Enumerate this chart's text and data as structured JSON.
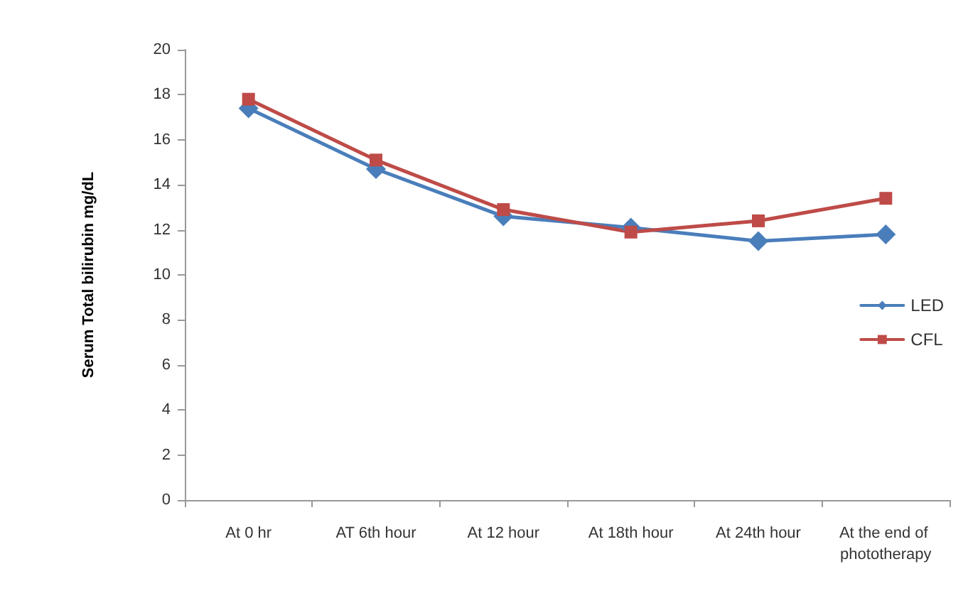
{
  "chart_data": {
    "type": "line",
    "ylabel": "Serum Total bilirubin mg/dL",
    "categories": [
      "At 0 hr",
      "AT 6th hour",
      "At 12 hour",
      "At 18th hour",
      "At 24th hour",
      "At the end of phototherapy"
    ],
    "series": [
      {
        "name": "LED",
        "color": "#4a7ebb",
        "marker": "diamond",
        "values": [
          17.4,
          14.7,
          12.6,
          12.1,
          11.5,
          11.8
        ]
      },
      {
        "name": "CFL",
        "color": "#be4b48",
        "marker": "square",
        "values": [
          17.8,
          15.1,
          12.9,
          11.9,
          12.4,
          13.4
        ]
      }
    ],
    "ylim": [
      0,
      20
    ],
    "yticks": [
      0,
      2,
      4,
      6,
      8,
      10,
      12,
      14,
      16,
      18,
      20
    ],
    "grid": false,
    "legend": "right"
  }
}
